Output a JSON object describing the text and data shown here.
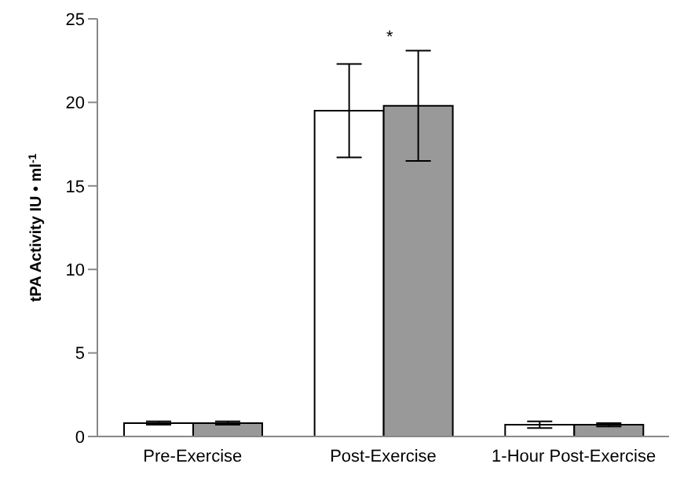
{
  "chart_data": {
    "type": "bar",
    "ylabel": "tPA Activity IU • ml$^{-1}$",
    "categories": [
      "Pre-Exercise",
      "Post-Exercise",
      "1-Hour Post-Exercise"
    ],
    "series": [
      {
        "color": "#ffffff",
        "values": [
          0.8,
          19.5,
          0.7
        ],
        "errors": [
          0.1,
          [
            16.7,
            22.3
          ],
          0.2
        ]
      },
      {
        "color": "#999999",
        "values": [
          0.8,
          19.8,
          0.7
        ],
        "errors": [
          0.1,
          [
            16.5,
            23.1
          ],
          0.1
        ]
      }
    ],
    "ylim": [
      0,
      25
    ],
    "yticks": [
      0,
      5,
      10,
      15,
      20,
      25
    ],
    "grid": false,
    "legend": false,
    "annotations": [
      "*"
    ]
  }
}
